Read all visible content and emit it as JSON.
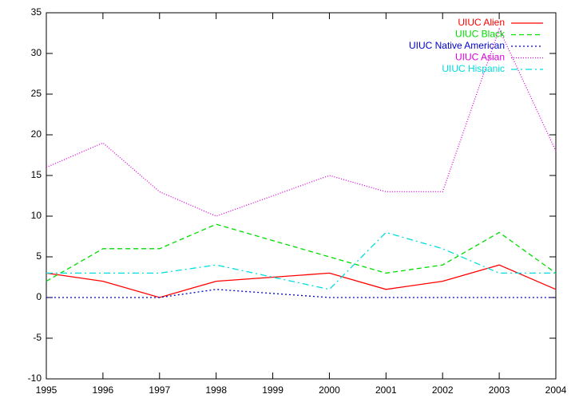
{
  "chart_data": {
    "type": "line",
    "x": [
      1995,
      1996,
      1997,
      1998,
      2000,
      2001,
      2002,
      2003,
      2004
    ],
    "series": [
      {
        "name": "UIUC Alien",
        "color": "#ff0000",
        "values": [
          3,
          2,
          0,
          2,
          3,
          1,
          2,
          4,
          1
        ]
      },
      {
        "name": "UIUC Black",
        "color": "#00dd00",
        "values": [
          2,
          6,
          6,
          9,
          5,
          3,
          4,
          8,
          3
        ]
      },
      {
        "name": "UIUC Native American",
        "color": "#0000cc",
        "values": [
          0,
          0,
          0,
          1,
          0,
          0,
          0,
          0,
          0
        ]
      },
      {
        "name": "UIUC Asian",
        "color": "#dd00dd",
        "values": [
          16,
          19,
          13,
          10,
          15,
          13,
          13,
          33,
          18
        ]
      },
      {
        "name": "UIUC Hispanic",
        "color": "#00dddd",
        "values": [
          3,
          3,
          3,
          4,
          1,
          8,
          6,
          3,
          3
        ]
      }
    ],
    "xlim": [
      1995,
      2004
    ],
    "xticks": [
      1995,
      1996,
      1997,
      1998,
      1999,
      2000,
      2001,
      2002,
      2003,
      2004
    ],
    "ylim": [
      -10,
      35
    ],
    "yticks": [
      -10,
      -5,
      0,
      5,
      10,
      15,
      20,
      25,
      30,
      35
    ],
    "legend": "top-right"
  }
}
